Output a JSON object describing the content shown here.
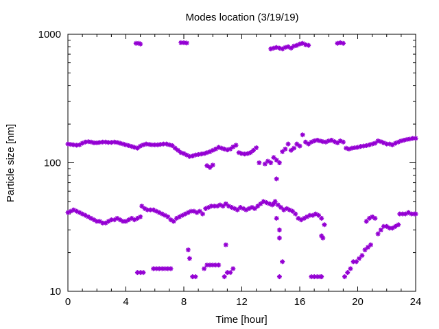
{
  "chart_data": {
    "type": "scatter",
    "title": "Modes location (3/19/19)",
    "xlabel": "Time [hour]",
    "ylabel": "Particle size [nm]",
    "xlim": [
      0,
      24
    ],
    "ylim": [
      10,
      1000
    ],
    "yscale": "log",
    "grid": false,
    "marker_color": "#9400d3",
    "x_ticks": [
      "0",
      "4",
      "8",
      "12",
      "16",
      "20",
      "24"
    ],
    "x_tick_values": [
      0,
      4,
      8,
      12,
      16,
      20,
      24
    ],
    "y_ticks": [
      "10",
      "100",
      "1000"
    ],
    "y_tick_values": [
      10,
      100,
      1000
    ],
    "series": [
      {
        "values": [
          [
            0.0,
            140
          ],
          [
            0.2,
            139
          ],
          [
            0.4,
            138
          ],
          [
            0.6,
            137
          ],
          [
            0.8,
            138
          ],
          [
            1.0,
            142
          ],
          [
            1.2,
            145
          ],
          [
            1.4,
            146
          ],
          [
            1.6,
            145
          ],
          [
            1.8,
            143
          ],
          [
            2.0,
            143
          ],
          [
            2.2,
            144
          ],
          [
            2.4,
            145
          ],
          [
            2.6,
            145
          ],
          [
            2.8,
            144
          ],
          [
            3.0,
            144
          ],
          [
            3.2,
            145
          ],
          [
            3.4,
            144
          ],
          [
            3.6,
            142
          ],
          [
            3.8,
            140
          ],
          [
            4.0,
            138
          ],
          [
            4.2,
            136
          ],
          [
            4.4,
            134
          ],
          [
            4.6,
            132
          ],
          [
            4.8,
            130
          ],
          [
            5.0,
            135
          ],
          [
            5.2,
            138
          ],
          [
            5.4,
            140
          ],
          [
            5.6,
            139
          ],
          [
            5.8,
            138
          ],
          [
            6.0,
            138
          ],
          [
            6.2,
            138
          ],
          [
            6.4,
            139
          ],
          [
            6.6,
            140
          ],
          [
            6.8,
            140
          ],
          [
            7.0,
            138
          ],
          [
            7.2,
            136
          ],
          [
            7.4,
            130
          ],
          [
            7.6,
            125
          ],
          [
            7.8,
            120
          ],
          [
            8.0,
            118
          ],
          [
            8.2,
            115
          ],
          [
            8.4,
            112
          ],
          [
            8.6,
            113
          ],
          [
            8.8,
            115
          ],
          [
            9.0,
            116
          ],
          [
            9.2,
            117
          ],
          [
            9.4,
            118
          ],
          [
            9.6,
            120
          ],
          [
            9.8,
            122
          ],
          [
            10.0,
            125
          ],
          [
            10.2,
            128
          ],
          [
            10.4,
            132
          ],
          [
            10.6,
            130
          ],
          [
            10.8,
            128
          ],
          [
            11.0,
            126
          ],
          [
            11.2,
            128
          ],
          [
            11.4,
            133
          ],
          [
            11.6,
            137
          ],
          [
            11.8,
            120
          ],
          [
            12.0,
            118
          ],
          [
            12.2,
            117
          ],
          [
            12.4,
            118
          ],
          [
            12.6,
            120
          ],
          [
            12.8,
            125
          ],
          [
            13.0,
            131
          ],
          [
            13.2,
            100
          ],
          [
            13.6,
            98
          ],
          [
            13.8,
            103
          ],
          [
            14.0,
            100
          ],
          [
            14.2,
            110
          ],
          [
            14.4,
            105
          ],
          [
            14.6,
            100
          ],
          [
            14.8,
            122
          ],
          [
            15.0,
            128
          ],
          [
            15.2,
            140
          ],
          [
            15.4,
            125
          ],
          [
            15.6,
            130
          ],
          [
            15.8,
            140
          ],
          [
            16.0,
            135
          ],
          [
            16.2,
            165
          ],
          [
            16.4,
            145
          ],
          [
            16.6,
            140
          ],
          [
            16.8,
            145
          ],
          [
            17.0,
            148
          ],
          [
            17.2,
            150
          ],
          [
            17.4,
            148
          ],
          [
            17.6,
            146
          ],
          [
            17.8,
            145
          ],
          [
            18.0,
            148
          ],
          [
            18.2,
            150
          ],
          [
            18.4,
            146
          ],
          [
            18.6,
            143
          ],
          [
            18.8,
            148
          ],
          [
            19.0,
            145
          ],
          [
            19.2,
            130
          ],
          [
            19.4,
            128
          ],
          [
            19.6,
            130
          ],
          [
            19.8,
            131
          ],
          [
            20.0,
            132
          ],
          [
            20.2,
            134
          ],
          [
            20.4,
            135
          ],
          [
            20.6,
            136
          ],
          [
            20.8,
            138
          ],
          [
            21.0,
            140
          ],
          [
            21.2,
            142
          ],
          [
            21.4,
            148
          ],
          [
            21.6,
            146
          ],
          [
            21.8,
            143
          ],
          [
            22.0,
            140
          ],
          [
            22.2,
            140
          ],
          [
            22.4,
            138
          ],
          [
            22.6,
            142
          ],
          [
            22.8,
            145
          ],
          [
            23.0,
            148
          ],
          [
            23.2,
            150
          ],
          [
            23.4,
            152
          ],
          [
            23.6,
            153
          ],
          [
            23.8,
            155
          ],
          [
            24.0,
            155
          ],
          [
            9.6,
            95
          ],
          [
            9.8,
            92
          ],
          [
            10.0,
            96
          ],
          [
            14.4,
            75
          ],
          [
            14.2,
            48
          ],
          [
            14.4,
            37
          ],
          [
            14.6,
            30
          ],
          [
            14.6,
            26
          ],
          [
            14.6,
            13
          ],
          [
            14.8,
            17
          ],
          [
            0.0,
            41
          ],
          [
            0.2,
            42
          ],
          [
            0.4,
            43
          ],
          [
            0.6,
            42
          ],
          [
            0.8,
            41
          ],
          [
            1.0,
            40
          ],
          [
            1.2,
            39
          ],
          [
            1.4,
            38
          ],
          [
            1.6,
            37
          ],
          [
            1.8,
            36
          ],
          [
            2.0,
            35
          ],
          [
            2.2,
            35
          ],
          [
            2.4,
            34
          ],
          [
            2.6,
            34
          ],
          [
            2.8,
            35
          ],
          [
            3.0,
            36
          ],
          [
            3.2,
            36
          ],
          [
            3.4,
            37
          ],
          [
            3.6,
            36
          ],
          [
            3.8,
            35
          ],
          [
            4.0,
            35
          ],
          [
            4.2,
            36
          ],
          [
            4.4,
            37
          ],
          [
            4.6,
            36
          ],
          [
            4.8,
            37
          ],
          [
            5.0,
            38
          ],
          [
            5.1,
            46
          ],
          [
            5.3,
            44
          ],
          [
            5.5,
            43
          ],
          [
            5.7,
            43
          ],
          [
            5.9,
            43
          ],
          [
            6.1,
            42
          ],
          [
            6.3,
            41
          ],
          [
            6.5,
            40
          ],
          [
            6.7,
            39
          ],
          [
            6.9,
            38
          ],
          [
            7.1,
            36
          ],
          [
            7.3,
            35
          ],
          [
            7.5,
            37
          ],
          [
            7.7,
            38
          ],
          [
            7.9,
            39
          ],
          [
            8.1,
            40
          ],
          [
            8.3,
            41
          ],
          [
            8.5,
            42
          ],
          [
            8.7,
            42
          ],
          [
            8.9,
            41
          ],
          [
            9.1,
            42
          ],
          [
            9.3,
            40
          ],
          [
            9.5,
            44
          ],
          [
            9.7,
            45
          ],
          [
            9.9,
            46
          ],
          [
            10.1,
            46
          ],
          [
            10.3,
            46
          ],
          [
            10.5,
            47
          ],
          [
            10.7,
            46
          ],
          [
            10.9,
            48
          ],
          [
            11.1,
            46
          ],
          [
            11.3,
            45
          ],
          [
            11.5,
            44
          ],
          [
            11.7,
            43
          ],
          [
            11.9,
            45
          ],
          [
            12.1,
            44
          ],
          [
            12.3,
            43
          ],
          [
            12.5,
            44
          ],
          [
            12.7,
            45
          ],
          [
            12.9,
            44
          ],
          [
            13.1,
            46
          ],
          [
            13.3,
            48
          ],
          [
            13.5,
            50
          ],
          [
            13.7,
            49
          ],
          [
            13.9,
            48
          ],
          [
            14.1,
            47
          ],
          [
            14.3,
            50
          ],
          [
            14.5,
            47
          ],
          [
            14.7,
            45
          ],
          [
            14.9,
            43
          ],
          [
            15.1,
            44
          ],
          [
            15.3,
            43
          ],
          [
            15.5,
            42
          ],
          [
            15.7,
            40
          ],
          [
            15.9,
            37
          ],
          [
            16.1,
            36
          ],
          [
            16.3,
            37
          ],
          [
            16.5,
            38
          ],
          [
            16.7,
            39
          ],
          [
            16.9,
            39
          ],
          [
            17.1,
            40
          ],
          [
            17.3,
            39
          ],
          [
            17.5,
            37
          ],
          [
            17.7,
            33
          ],
          [
            17.5,
            27
          ],
          [
            17.6,
            26
          ],
          [
            16.8,
            13
          ],
          [
            17.0,
            13
          ],
          [
            17.2,
            13
          ],
          [
            17.4,
            13
          ],
          [
            17.5,
            13
          ],
          [
            8.8,
            13
          ],
          [
            8.6,
            13
          ],
          [
            8.4,
            18
          ],
          [
            8.3,
            21
          ],
          [
            10.9,
            23
          ],
          [
            9.4,
            15
          ],
          [
            9.6,
            16
          ],
          [
            9.8,
            16
          ],
          [
            10.0,
            16
          ],
          [
            10.2,
            16
          ],
          [
            10.4,
            16
          ],
          [
            10.8,
            13
          ],
          [
            11.0,
            14
          ],
          [
            11.2,
            14
          ],
          [
            11.4,
            15
          ],
          [
            4.8,
            14
          ],
          [
            5.0,
            14
          ],
          [
            5.2,
            14
          ],
          [
            5.9,
            15
          ],
          [
            6.1,
            15
          ],
          [
            6.3,
            15
          ],
          [
            6.5,
            15
          ],
          [
            6.7,
            15
          ],
          [
            6.9,
            15
          ],
          [
            7.1,
            15
          ],
          [
            19.1,
            13
          ],
          [
            19.3,
            14
          ],
          [
            19.5,
            15
          ],
          [
            19.7,
            17
          ],
          [
            19.9,
            17
          ],
          [
            20.1,
            18
          ],
          [
            20.3,
            19
          ],
          [
            20.5,
            21
          ],
          [
            20.7,
            22
          ],
          [
            20.9,
            23
          ],
          [
            20.6,
            35
          ],
          [
            20.8,
            37
          ],
          [
            21.0,
            38
          ],
          [
            21.2,
            37
          ],
          [
            21.4,
            28
          ],
          [
            21.6,
            30
          ],
          [
            21.8,
            32
          ],
          [
            22.0,
            32
          ],
          [
            22.2,
            31
          ],
          [
            22.4,
            31
          ],
          [
            22.6,
            32
          ],
          [
            22.8,
            33
          ],
          [
            22.9,
            40
          ],
          [
            23.1,
            40
          ],
          [
            23.3,
            40
          ],
          [
            23.5,
            41
          ],
          [
            23.7,
            40
          ],
          [
            23.9,
            40
          ],
          [
            24.0,
            40
          ],
          [
            4.7,
            850
          ],
          [
            4.9,
            850
          ],
          [
            5.0,
            840
          ],
          [
            7.8,
            860
          ],
          [
            8.0,
            860
          ],
          [
            8.2,
            855
          ],
          [
            14.0,
            770
          ],
          [
            14.2,
            780
          ],
          [
            14.4,
            790
          ],
          [
            14.6,
            780
          ],
          [
            14.8,
            770
          ],
          [
            15.0,
            790
          ],
          [
            15.2,
            800
          ],
          [
            15.4,
            780
          ],
          [
            15.6,
            810
          ],
          [
            15.8,
            820
          ],
          [
            16.0,
            840
          ],
          [
            16.2,
            850
          ],
          [
            16.4,
            830
          ],
          [
            16.6,
            820
          ],
          [
            18.6,
            850
          ],
          [
            18.8,
            860
          ],
          [
            19.0,
            850
          ]
        ]
      }
    ]
  }
}
